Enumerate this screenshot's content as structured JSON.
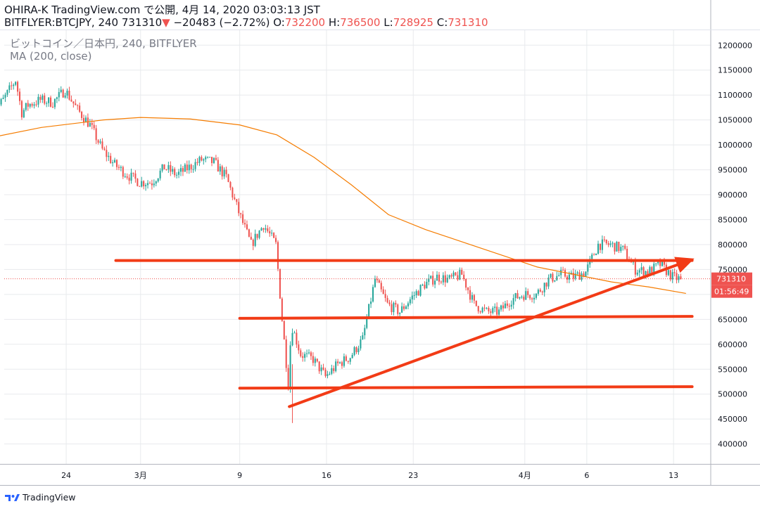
{
  "header": {
    "author": "OHIRA-K",
    "brand": "TradingView.com",
    "published_prefix": "で公開,",
    "published_date": "4月 14, 2020 03:03:13 JST",
    "symbol": "BITFLYER:BTCJPY,",
    "interval": "240",
    "last": "731310",
    "change_arrow": "▼",
    "change": "−20483 (−2.72%)",
    "o_label": "O:",
    "o_val": "732200",
    "h_label": "H:",
    "h_val": "736500",
    "l_label": "L:",
    "l_val": "728925",
    "c_label": "C:",
    "c_val": "731310"
  },
  "legend": {
    "title": "ビットコイン／日本円, 240, BITFLYER",
    "indicator": "MA (200, close)"
  },
  "footer": {
    "brand": "TradingView"
  },
  "colors": {
    "up": "#26a69a",
    "down": "#ef5350",
    "ma": "#f57c00",
    "trendline": "#f23b16",
    "grid": "#e8eaed",
    "price_label_bg": "#ef5350"
  },
  "chart_data": {
    "type": "candlestick",
    "title": "ビットコイン／日本円, 240, BITFLYER",
    "ylim": [
      360000,
      1230000
    ],
    "yticks": [
      400000,
      450000,
      500000,
      550000,
      600000,
      650000,
      700000,
      750000,
      800000,
      850000,
      900000,
      950000,
      1000000,
      1050000,
      1100000,
      1150000,
      1200000
    ],
    "x_range_days": [
      "2020-02-19",
      "2020-04-16"
    ],
    "xticks": [
      {
        "label": "24",
        "date": "2020-02-24"
      },
      {
        "label": "3月",
        "date": "2020-03-01"
      },
      {
        "label": "9",
        "date": "2020-03-09"
      },
      {
        "label": "16",
        "date": "2020-03-16"
      },
      {
        "label": "23",
        "date": "2020-03-23"
      },
      {
        "label": "4月",
        "date": "2020-04-01"
      },
      {
        "label": "6",
        "date": "2020-04-06"
      },
      {
        "label": "13",
        "date": "2020-04-13"
      }
    ],
    "price_path": [
      [
        "2020-02-18",
        1060000
      ],
      [
        "2020-02-19",
        1090000
      ],
      [
        "2020-02-20",
        1130000
      ],
      [
        "2020-02-20T12",
        1065000
      ],
      [
        "2020-02-21",
        1080000
      ],
      [
        "2020-02-22",
        1090000
      ],
      [
        "2020-02-23",
        1085000
      ],
      [
        "2020-02-24",
        1110000
      ],
      [
        "2020-02-25",
        1070000
      ],
      [
        "2020-02-26",
        1040000
      ],
      [
        "2020-02-27",
        990000
      ],
      [
        "2020-02-28",
        960000
      ],
      [
        "2020-02-29",
        940000
      ],
      [
        "2020-03-01",
        925000
      ],
      [
        "2020-03-02",
        925000
      ],
      [
        "2020-03-03",
        955000
      ],
      [
        "2020-03-04",
        940000
      ],
      [
        "2020-03-05",
        955000
      ],
      [
        "2020-03-06",
        970000
      ],
      [
        "2020-03-07",
        965000
      ],
      [
        "2020-03-08",
        935000
      ],
      [
        "2020-03-09",
        865000
      ],
      [
        "2020-03-10",
        800000
      ],
      [
        "2020-03-11",
        840000
      ],
      [
        "2020-03-12",
        800000
      ],
      [
        "2020-03-12T12",
        650000
      ],
      [
        "2020-03-13",
        520000
      ],
      [
        "2020-03-13T06",
        640000
      ],
      [
        "2020-03-14",
        580000
      ],
      [
        "2020-03-15",
        570000
      ],
      [
        "2020-03-16",
        535000
      ],
      [
        "2020-03-17",
        560000
      ],
      [
        "2020-03-18",
        575000
      ],
      [
        "2020-03-19",
        610000
      ],
      [
        "2020-03-20",
        730000
      ],
      [
        "2020-03-21",
        680000
      ],
      [
        "2020-03-22",
        665000
      ],
      [
        "2020-03-23",
        695000
      ],
      [
        "2020-03-24",
        720000
      ],
      [
        "2020-03-25",
        735000
      ],
      [
        "2020-03-26",
        730000
      ],
      [
        "2020-03-27",
        740000
      ],
      [
        "2020-03-28",
        680000
      ],
      [
        "2020-03-29",
        665000
      ],
      [
        "2020-03-30",
        665000
      ],
      [
        "2020-03-31",
        690000
      ],
      [
        "2020-04-01",
        700000
      ],
      [
        "2020-04-02",
        700000
      ],
      [
        "2020-04-03",
        730000
      ],
      [
        "2020-04-04",
        740000
      ],
      [
        "2020-04-05",
        735000
      ],
      [
        "2020-04-06",
        745000
      ],
      [
        "2020-04-07",
        800000
      ],
      [
        "2020-04-08",
        800000
      ],
      [
        "2020-04-09",
        790000
      ],
      [
        "2020-04-10",
        750000
      ],
      [
        "2020-04-11",
        745000
      ],
      [
        "2020-04-12",
        760000
      ],
      [
        "2020-04-13",
        735000
      ],
      [
        "2020-04-13T12",
        731310
      ]
    ],
    "ma": {
      "name": "MA (200, close)",
      "points": [
        [
          "2020-02-18",
          1015000
        ],
        [
          "2020-02-22",
          1035000
        ],
        [
          "2020-02-27",
          1050000
        ],
        [
          "2020-03-01",
          1055000
        ],
        [
          "2020-03-05",
          1052000
        ],
        [
          "2020-03-09",
          1040000
        ],
        [
          "2020-03-12",
          1020000
        ],
        [
          "2020-03-15",
          975000
        ],
        [
          "2020-03-18",
          920000
        ],
        [
          "2020-03-21",
          860000
        ],
        [
          "2020-03-24",
          830000
        ],
        [
          "2020-03-27",
          805000
        ],
        [
          "2020-03-30",
          780000
        ],
        [
          "2020-04-02",
          755000
        ],
        [
          "2020-04-05",
          740000
        ],
        [
          "2020-04-08",
          725000
        ],
        [
          "2020-04-11",
          715000
        ],
        [
          "2020-04-14",
          702000
        ]
      ]
    },
    "trendlines": [
      {
        "from": [
          "2020-02-28",
          768000
        ],
        "to": [
          "2020-04-14T12",
          768000
        ]
      },
      {
        "from": [
          "2020-03-09",
          652000
        ],
        "to": [
          "2020-04-14T12",
          656000
        ]
      },
      {
        "from": [
          "2020-03-09",
          512000
        ],
        "to": [
          "2020-04-14T12",
          515000
        ]
      },
      {
        "from": [
          "2020-03-13",
          475000
        ],
        "to": [
          "2020-04-14T06",
          768000
        ],
        "arrow": true
      }
    ],
    "current_price": 731310,
    "current_price_label": "731310",
    "countdown_label": "01:56:49"
  }
}
